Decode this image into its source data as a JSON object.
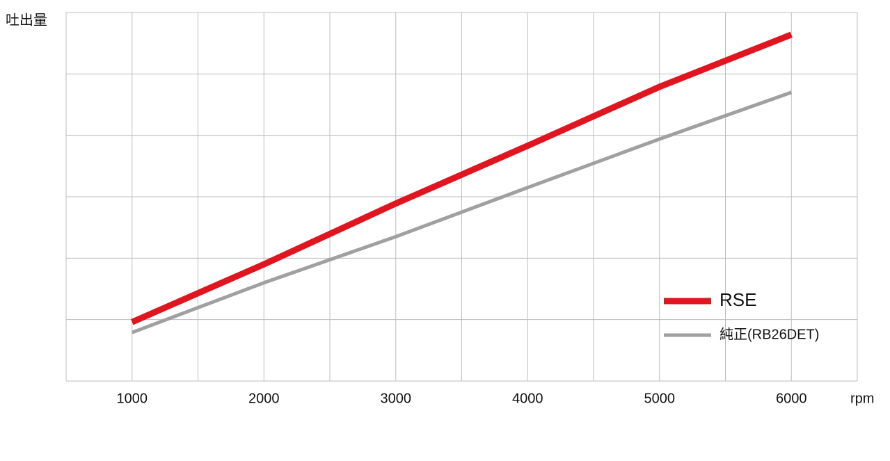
{
  "chart_data": {
    "type": "line",
    "y_label": "吐出量",
    "x_label": "rpm",
    "x": [
      1000,
      2000,
      3000,
      4000,
      5000,
      6000
    ],
    "series": [
      {
        "name": "RSE",
        "color": "#e0151f",
        "values": [
          0.96,
          1.9,
          2.89,
          3.83,
          4.79,
          5.64
        ]
      },
      {
        "name": "純正(RB26DET)",
        "color": "#a0a0a0",
        "values": [
          0.79,
          1.6,
          2.35,
          3.15,
          3.94,
          4.7
        ]
      }
    ],
    "xlim": [
      500,
      6500
    ],
    "xticks": [
      1000,
      2000,
      3000,
      4000,
      5000,
      6000
    ],
    "xgrid": [
      500,
      1000,
      1500,
      2000,
      2500,
      3000,
      3500,
      4000,
      4500,
      5000,
      5500,
      6000,
      6500
    ],
    "ylim": [
      0,
      6
    ],
    "ygrid": [
      0,
      1,
      2,
      3,
      4,
      5,
      6
    ],
    "grid": true,
    "legend": "lower right"
  }
}
